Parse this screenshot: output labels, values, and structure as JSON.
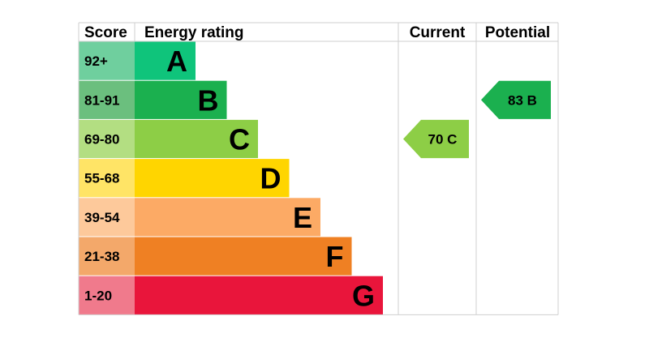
{
  "headers": {
    "score": "Score",
    "energy_rating": "Energy rating",
    "current": "Current",
    "potential": "Potential"
  },
  "chart_data": {
    "type": "bar",
    "categories": [
      "A",
      "B",
      "C",
      "D",
      "E",
      "F",
      "G"
    ],
    "score_ranges": [
      "92+",
      "81-91",
      "69-80",
      "55-68",
      "39-54",
      "21-38",
      "1-20"
    ],
    "band_colors": [
      "#0fc47b",
      "#1bb04f",
      "#8dce46",
      "#ffd500",
      "#fcaa65",
      "#ef8023",
      "#e9153b"
    ],
    "score_cell_colors": [
      "#6fcf9e",
      "#6bbf7e",
      "#b3de82",
      "#ffe466",
      "#fdc99b",
      "#f3a86a",
      "#f07a8c"
    ],
    "current": {
      "value": 70,
      "band": "C",
      "label": "70 C",
      "color": "#8dce46"
    },
    "potential": {
      "value": 83,
      "band": "B",
      "label": "83 B",
      "color": "#1bb04f"
    }
  }
}
